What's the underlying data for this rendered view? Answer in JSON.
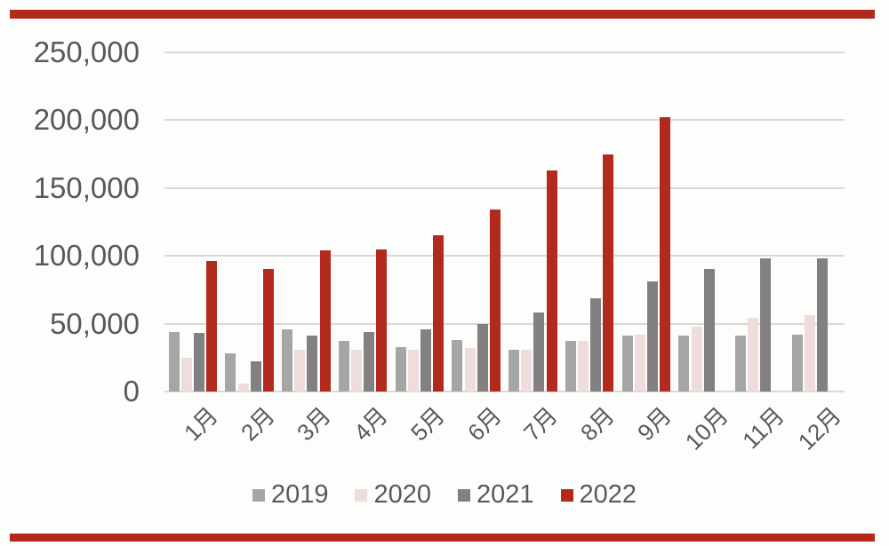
{
  "page": {
    "background": "#fdfdfc",
    "accent_stripe_color": "#b2291e",
    "text_color": "#595959",
    "gridline_color": "#d9d9d9"
  },
  "chart_data": {
    "type": "bar",
    "title": "",
    "xlabel": "",
    "ylabel": "",
    "categories": [
      "1月",
      "2月",
      "3月",
      "4月",
      "5月",
      "6月",
      "7月",
      "8月",
      "9月",
      "10月",
      "11月",
      "12月"
    ],
    "series": [
      {
        "name": "2019",
        "color": "#a6a6a6",
        "values": [
          44000,
          28000,
          46000,
          37000,
          33000,
          38000,
          31000,
          37000,
          41000,
          41000,
          41000,
          42000
        ]
      },
      {
        "name": "2020",
        "color": "#eedddc",
        "values": [
          25000,
          6000,
          31000,
          31000,
          31000,
          32000,
          31000,
          37000,
          42000,
          48000,
          54000,
          56000
        ]
      },
      {
        "name": "2021",
        "color": "#828080",
        "values": [
          43000,
          22000,
          41000,
          44000,
          46000,
          50000,
          58000,
          69000,
          81000,
          90000,
          98000,
          98000
        ]
      },
      {
        "name": "2022",
        "color": "#b2291e",
        "values": [
          96000,
          90000,
          104000,
          105000,
          115000,
          134000,
          163000,
          175000,
          202000,
          null,
          null,
          null
        ]
      }
    ],
    "y_axis": {
      "min": 0,
      "max": 250000,
      "step": 50000,
      "tick_labels": [
        "0",
        "50,000",
        "100,000",
        "150,000",
        "200,000",
        "250,000"
      ]
    },
    "grid": true,
    "legend_position": "bottom",
    "legend_labels": [
      "2019",
      "2020",
      "2021",
      "2022"
    ]
  }
}
